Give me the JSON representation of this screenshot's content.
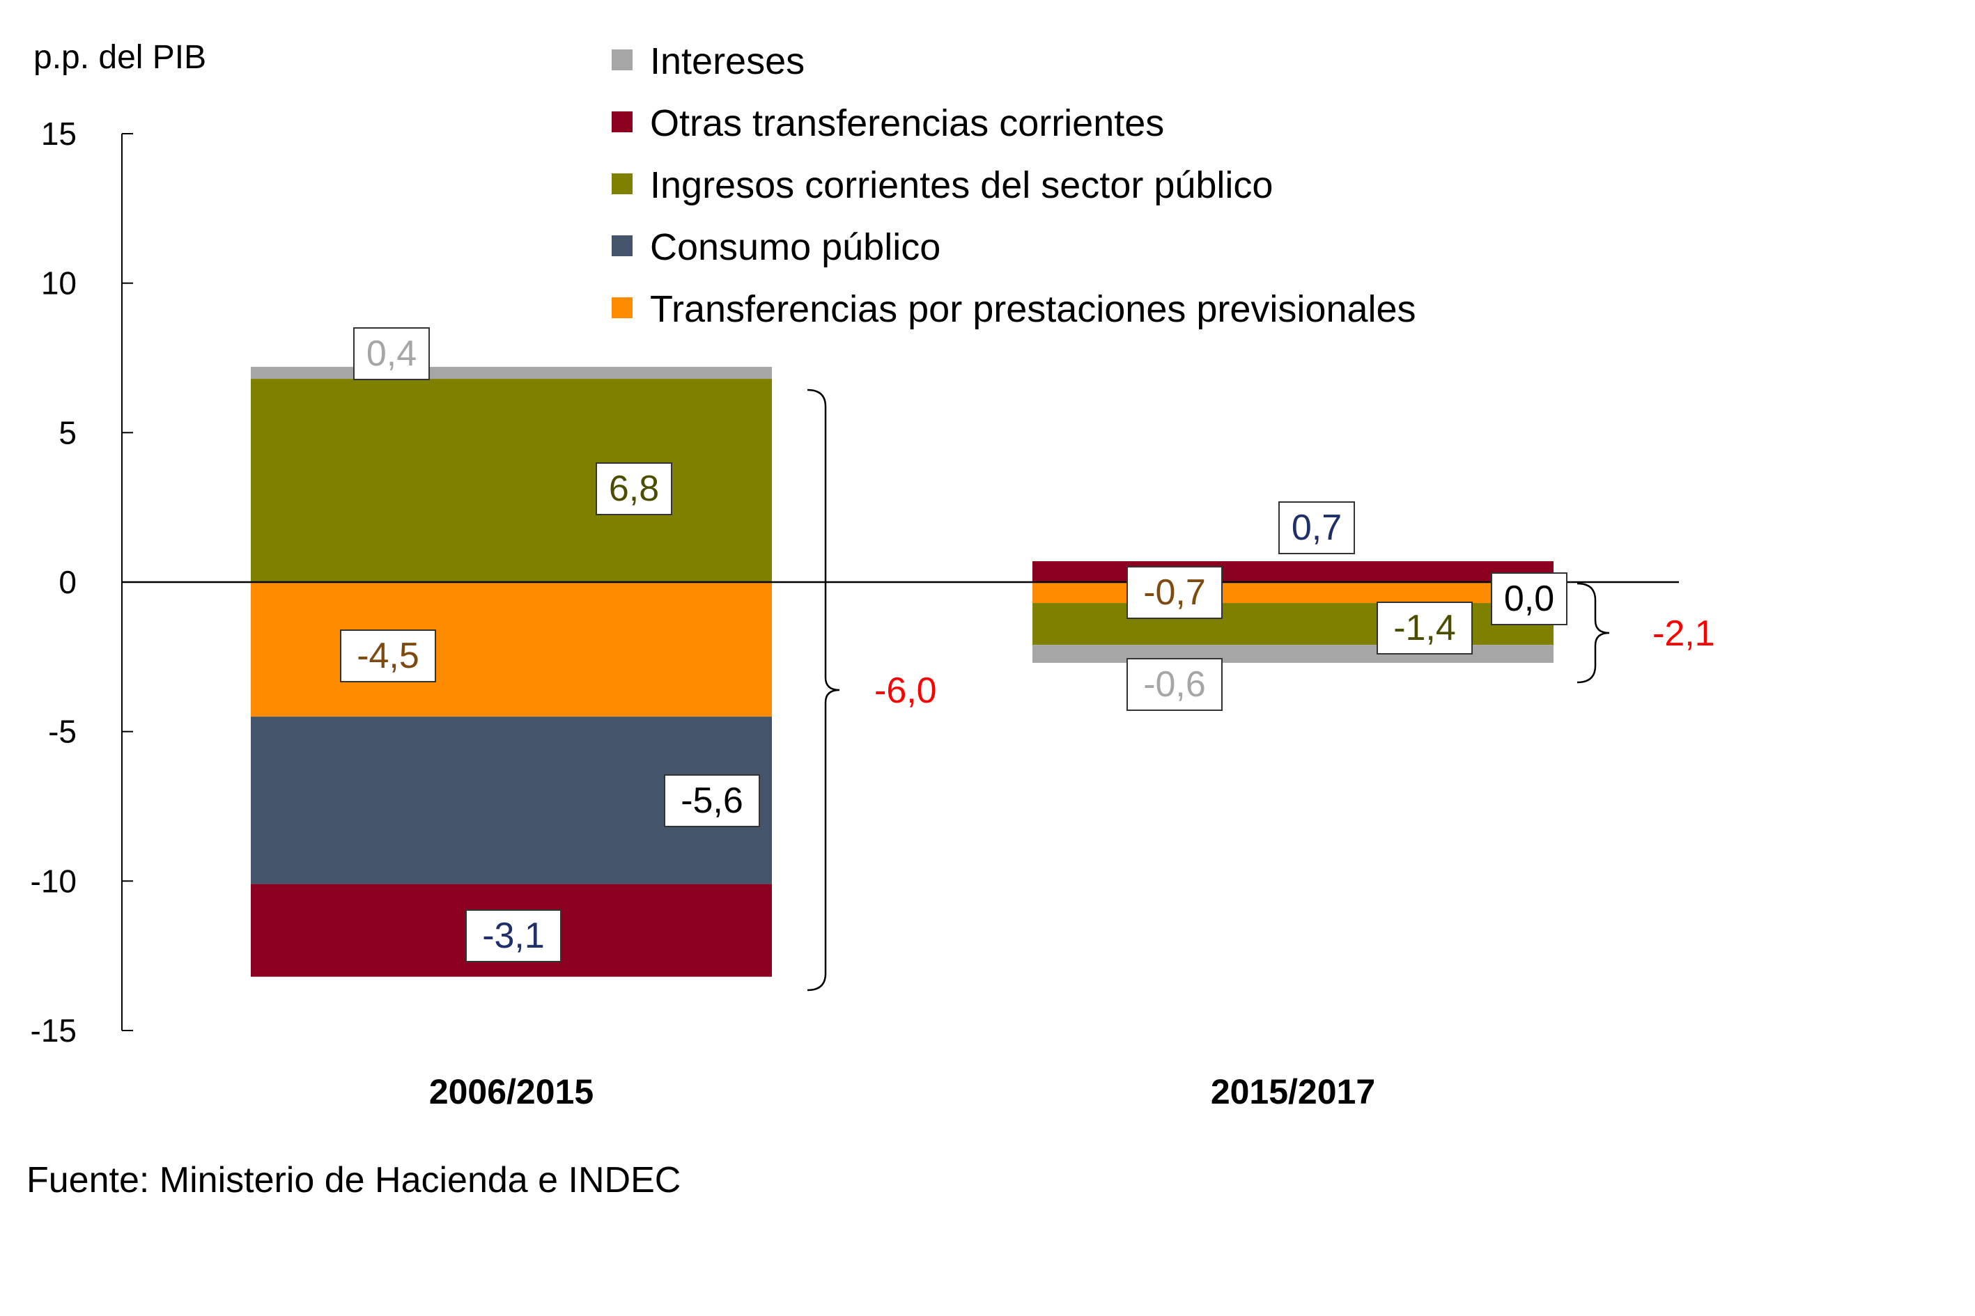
{
  "chart_data": {
    "type": "bar",
    "stacked": true,
    "ylabel": "p.p. del PIB",
    "ylim": [
      -15,
      15
    ],
    "yticks": [
      15,
      10,
      5,
      0,
      -5,
      -10,
      -15
    ],
    "ytick_labels": [
      "15",
      "10",
      "5",
      "0",
      "-5",
      "-10",
      "-15"
    ],
    "categories": [
      "2006/2015",
      "2015/2017"
    ],
    "grid": false,
    "legend_position": "top",
    "legend_order": [
      "Intereses",
      "Otras transferencias corrientes",
      "Ingresos corrientes del sector público",
      "Consumo público",
      "Transferencias por prestaciones previsionales"
    ],
    "series": [
      {
        "name": "Intereses",
        "color": "#a6a6a6",
        "label_color": "#a6a6a6",
        "values": [
          0.4,
          -0.6
        ],
        "labels": [
          "0,4",
          "-0,6"
        ]
      },
      {
        "name": "Otras transferencias corrientes",
        "color": "#8b0020",
        "label_color": "#1f2f6b",
        "values": [
          -3.1,
          0.7
        ],
        "labels": [
          "-3,1",
          "0,7"
        ]
      },
      {
        "name": "Ingresos corrientes del sector público",
        "color": "#7f8000",
        "label_color": "#4d4d00",
        "values": [
          6.8,
          -1.4
        ],
        "labels": [
          "6,8",
          "-1,4"
        ]
      },
      {
        "name": "Consumo público",
        "color": "#44546a",
        "label_color": "#000000",
        "values": [
          -5.6,
          0.0
        ],
        "labels": [
          "-5,6",
          "0,0"
        ]
      },
      {
        "name": "Transferencias por prestaciones previsionales",
        "color": "#ff8c00",
        "label_color": "#7f4a10",
        "values": [
          -4.5,
          -0.7
        ],
        "labels": [
          "-4,5",
          "-0,7"
        ]
      }
    ],
    "totals": [
      {
        "category": "2006/2015",
        "value": -6.0,
        "label": "-6,0",
        "color": "#ff0000"
      },
      {
        "category": "2015/2017",
        "value": -2.1,
        "label": "-2,1",
        "color": "#ff0000"
      }
    ],
    "source": "Fuente: Ministerio de Hacienda e INDEC"
  }
}
